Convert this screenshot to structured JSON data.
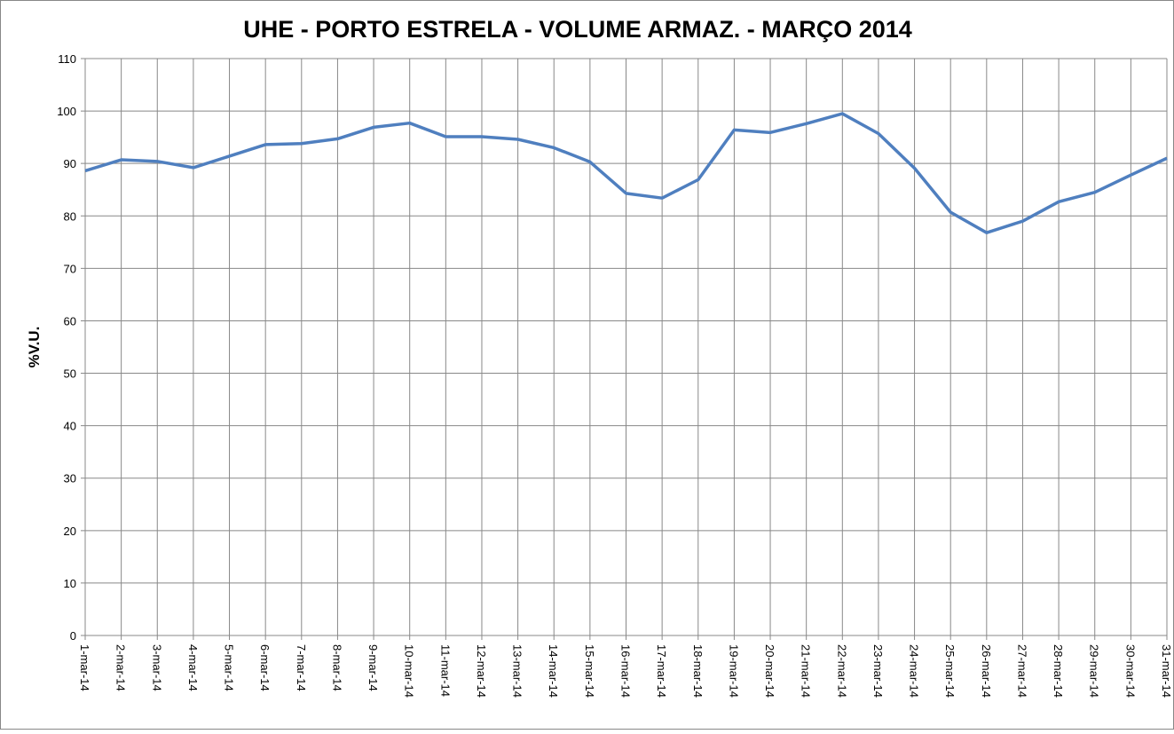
{
  "chart_data": {
    "type": "line",
    "title": "UHE - PORTO ESTRELA - VOLUME ARMAZ. -  MARÇO 2014",
    "y_label": "%V.U.",
    "categories": [
      "1-mar-14",
      "2-mar-14",
      "3-mar-14",
      "4-mar-14",
      "5-mar-14",
      "6-mar-14",
      "7-mar-14",
      "8-mar-14",
      "9-mar-14",
      "10-mar-14",
      "11-mar-14",
      "12-mar-14",
      "13-mar-14",
      "14-mar-14",
      "15-mar-14",
      "16-mar-14",
      "17-mar-14",
      "18-mar-14",
      "19-mar-14",
      "20-mar-14",
      "21-mar-14",
      "22-mar-14",
      "23-mar-14",
      "24-mar-14",
      "25-mar-14",
      "26-mar-14",
      "27-mar-14",
      "28-mar-14",
      "29-mar-14",
      "30-mar-14",
      "31-mar-14"
    ],
    "values": [
      88.6,
      90.7,
      90.4,
      89.2,
      91.4,
      93.6,
      93.8,
      94.7,
      96.9,
      97.7,
      95.1,
      95.1,
      94.6,
      93.0,
      90.3,
      84.3,
      83.4,
      86.9,
      96.4,
      95.9,
      97.6,
      99.5,
      95.7,
      89.1,
      80.7,
      76.8,
      79.0,
      82.7,
      84.5,
      87.8,
      91.0
    ],
    "color": "#4f7fbf",
    "ylim": [
      0,
      110
    ],
    "yticks": [
      0,
      10,
      20,
      30,
      40,
      50,
      60,
      70,
      80,
      90,
      100,
      110
    ],
    "grid": true
  }
}
